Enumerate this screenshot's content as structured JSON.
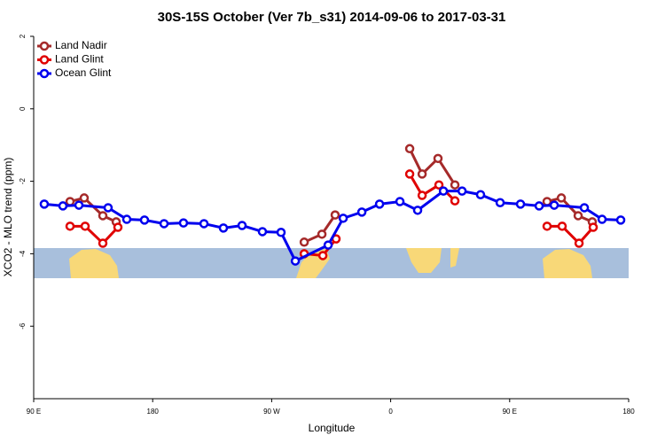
{
  "chart_data": {
    "type": "line",
    "title": "30S-15S October (Ver 7b_s31)   2014-09-06 to 2017-03-31",
    "x_label": "Longitude",
    "y_label": "XCO2 - MLO trend (ppm)",
    "xlim": [
      90,
      540
    ],
    "xticks": [
      {
        "value": 90,
        "label": "90 E"
      },
      {
        "value": 180,
        "label": "180"
      },
      {
        "value": 270,
        "label": "90 W"
      },
      {
        "value": 360,
        "label": "0"
      },
      {
        "value": 450,
        "label": "90 E"
      },
      {
        "value": 540,
        "label": "180"
      }
    ],
    "ylim": [
      -8,
      2
    ],
    "yticks": [
      2,
      0,
      -2,
      -4,
      -6
    ],
    "legend": "top-left",
    "series": [
      {
        "name": "Land Nadir",
        "color": "#a52a2a",
        "x": [
          117.5,
          128.2,
          142.3,
          152.4,
          null,
          294.6,
          308.0,
          318.0,
          null,
          374.4,
          383.8,
          395.8,
          408.6,
          null,
          478.3,
          489.1,
          501.8,
          512.5
        ],
        "values": [
          -2.56,
          -2.46,
          -2.95,
          -3.12,
          null,
          -3.68,
          -3.46,
          -2.93,
          null,
          -1.1,
          -1.8,
          -1.37,
          -2.1,
          null,
          -2.56,
          -2.46,
          -2.95,
          -3.12
        ]
      },
      {
        "name": "Land Glint",
        "color": "#e00000",
        "x": [
          117.5,
          128.9,
          142.3,
          153.7,
          null,
          294.6,
          308.7,
          318.7,
          null,
          374.4,
          383.8,
          396.5,
          408.6,
          null,
          478.3,
          489.7,
          502.5,
          513.2
        ],
        "values": [
          -3.24,
          -3.24,
          -3.71,
          -3.27,
          null,
          -4.0,
          -4.05,
          -3.59,
          null,
          -1.8,
          -2.39,
          -2.1,
          -2.54,
          null,
          -3.24,
          -3.24,
          -3.71,
          -3.27
        ]
      },
      {
        "name": "Ocean Glint",
        "color": "#0000ee",
        "x": [
          98.0,
          112.1,
          124.2,
          146.3,
          160.4,
          173.8,
          188.6,
          203.3,
          218.8,
          233.5,
          247.6,
          263.0,
          277.1,
          287.9,
          312.7,
          324.1,
          338.2,
          351.6,
          367.0,
          380.4,
          399.9,
          414.0,
          428.0,
          442.8,
          458.2,
          472.3,
          483.7,
          506.5,
          519.9,
          534.0
        ],
        "values": [
          -2.63,
          -2.68,
          -2.66,
          -2.73,
          -3.05,
          -3.07,
          -3.17,
          -3.15,
          -3.17,
          -3.29,
          -3.22,
          -3.39,
          -3.41,
          -4.2,
          -3.76,
          -3.02,
          -2.85,
          -2.63,
          -2.56,
          -2.8,
          -2.27,
          -2.27,
          -2.37,
          -2.59,
          -2.63,
          -2.68,
          -2.66,
          -2.73,
          -3.05,
          -3.07
        ]
      }
    ]
  }
}
